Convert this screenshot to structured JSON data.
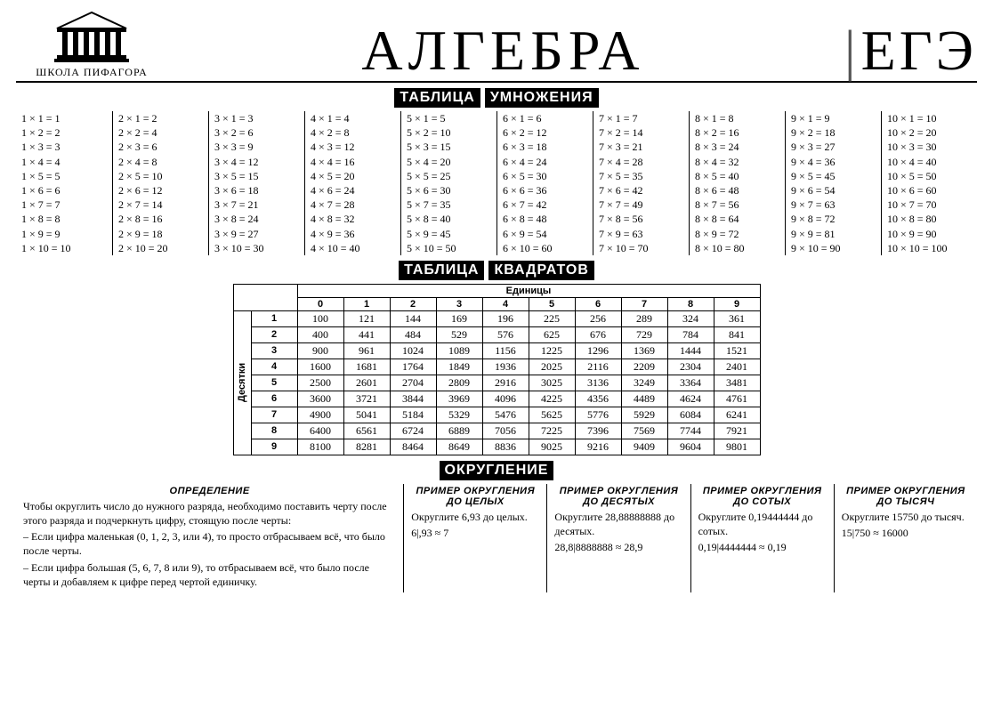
{
  "header": {
    "logo_text": "ШКОЛА ПИФАГОРА",
    "title": "АЛГЕБРА",
    "right": "ЕГЭ"
  },
  "sections": {
    "mult_t1": "ТАБЛИЦА",
    "mult_t2": "УМНОЖЕНИЯ",
    "sq_t1": "ТАБЛИЦА",
    "sq_t2": "КВАДРАТОВ",
    "round_t": "ОКРУГЛЕНИЕ"
  },
  "squares": {
    "top_label": "Единицы",
    "side_label": "Десятки",
    "cols": [
      "0",
      "1",
      "2",
      "3",
      "4",
      "5",
      "6",
      "7",
      "8",
      "9"
    ],
    "row_heads": [
      "1",
      "2",
      "3",
      "4",
      "5",
      "6",
      "7",
      "8",
      "9"
    ],
    "rows": [
      [
        100,
        121,
        144,
        169,
        196,
        225,
        256,
        289,
        324,
        361
      ],
      [
        400,
        441,
        484,
        529,
        576,
        625,
        676,
        729,
        784,
        841
      ],
      [
        900,
        961,
        1024,
        1089,
        1156,
        1225,
        1296,
        1369,
        1444,
        1521
      ],
      [
        1600,
        1681,
        1764,
        1849,
        1936,
        2025,
        2116,
        2209,
        2304,
        2401
      ],
      [
        2500,
        2601,
        2704,
        2809,
        2916,
        3025,
        3136,
        3249,
        3364,
        3481
      ],
      [
        3600,
        3721,
        3844,
        3969,
        4096,
        4225,
        4356,
        4489,
        4624,
        4761
      ],
      [
        4900,
        5041,
        5184,
        5329,
        5476,
        5625,
        5776,
        5929,
        6084,
        6241
      ],
      [
        6400,
        6561,
        6724,
        6889,
        7056,
        7225,
        7396,
        7569,
        7744,
        7921
      ],
      [
        8100,
        8281,
        8464,
        8649,
        8836,
        9025,
        9216,
        9409,
        9604,
        9801
      ]
    ]
  },
  "rounding": {
    "def_head": "ОПРЕДЕЛЕНИЕ",
    "def_p1": "Чтобы округлить число до нужного разряда, необходимо поставить черту после этого разряда и подчеркнуть цифру, стоящую после черты:",
    "def_p2": "– Если цифра маленькая (0, 1, 2, 3, или 4), то просто отбрасываем всё, что было после черты.",
    "def_p3": "– Если цифра большая (5, 6, 7, 8 или 9), то отбрасываем всё, что было после черты и добавляем к цифре перед чертой единичку.",
    "c1_head": "ПРИМЕР ОКРУГЛЕНИЯ ДО ЦЕЛЫХ",
    "c1_l1": "Округлите 6,93 до целых.",
    "c1_l2": "6|,93 ≈ 7",
    "c2_head": "ПРИМЕР ОКРУГЛЕНИЯ ДО ДЕСЯТЫХ",
    "c2_l1": "Округлите 28,88888888 до десятых.",
    "c2_l2": "28,8|8888888 ≈ 28,9",
    "c3_head": "ПРИМЕР ОКРУГЛЕНИЯ ДО СОТЫХ",
    "c3_l1": "Округлите 0,19444444 до сотых.",
    "c3_l2": "0,19|4444444 ≈ 0,19",
    "c4_head": "ПРИМЕР ОКРУГЛЕНИЯ ДО ТЫСЯЧ",
    "c4_l1": "Округлите 15750 до тысяч.",
    "c4_l2": "15|750 ≈ 16000"
  }
}
